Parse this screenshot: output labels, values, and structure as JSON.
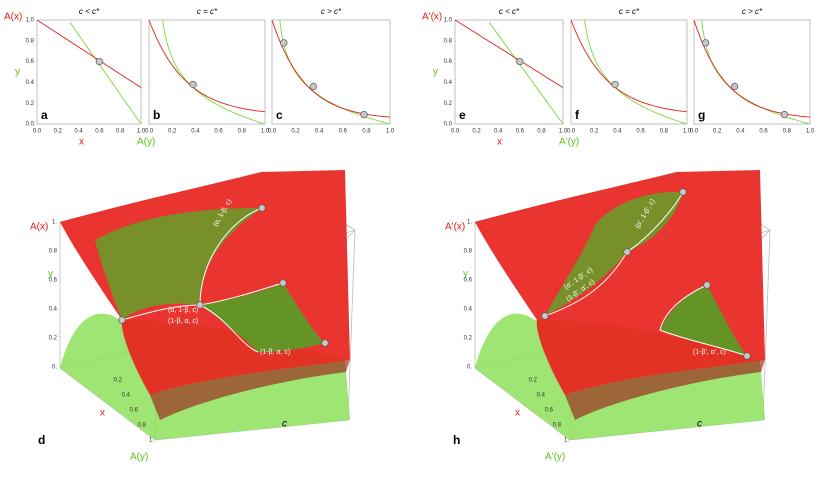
{
  "top": {
    "left": {
      "y_label": "A(x)",
      "y_sub": "y",
      "x_label": "x",
      "x_sub": "A(y)"
    },
    "right": {
      "y_label": "A'(x)",
      "y_sub": "y",
      "x_label": "x",
      "x_sub": "A'(y)"
    },
    "ticks": [
      "0.0",
      "0.2",
      "0.4",
      "0.6",
      "0.8",
      "1.0"
    ],
    "panels": [
      {
        "letter": "a",
        "title": "c < c*"
      },
      {
        "letter": "b",
        "title": "c = c*"
      },
      {
        "letter": "c",
        "title": "c > c*"
      },
      {
        "letter": "e",
        "title": "c < c*"
      },
      {
        "letter": "f",
        "title": "c = c*"
      },
      {
        "letter": "g",
        "title": "c > c*"
      }
    ]
  },
  "surfaces": [
    {
      "letter": "d",
      "z_label": "A(x)",
      "y_label": "y",
      "x_label": "x",
      "x_sub": "A(y)",
      "c_label": "c",
      "y_ticks": [
        "1.",
        "0.8",
        "0.6",
        "0.4",
        "0.2",
        "0."
      ],
      "x_ticks": [
        "0.2",
        "0.4",
        "0.6",
        "0.8",
        "1."
      ],
      "points": [
        "(α, 1-β, c)",
        "(α, 1-β, c)",
        "(1-β, α, c)",
        "(1-β, α, c)"
      ]
    },
    {
      "letter": "h",
      "z_label": "A'(x)",
      "y_label": "y",
      "x_label": "x",
      "x_sub": "A'(y)",
      "c_label": "c",
      "y_ticks": [
        "1.",
        "0.8",
        "0.6",
        "0.4",
        "0.2",
        "0."
      ],
      "x_ticks": [
        "0.2",
        "0.4",
        "0.6",
        "0.8",
        "1."
      ],
      "points": [
        "(α', 1-β', c)",
        "(α', 1-β', c)",
        "(1-β', α', c)",
        "(1-β', α', c)"
      ]
    }
  ]
}
